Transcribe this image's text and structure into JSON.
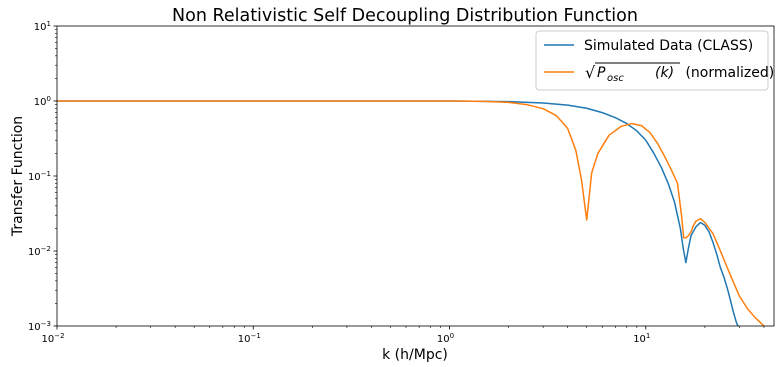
{
  "chart_data": {
    "type": "line",
    "title": "Non Relativistic Self Decoupling Distribution Function",
    "xlabel": "k (h/Mpc)",
    "ylabel": "Transfer Function",
    "xscale": "log",
    "yscale": "log",
    "xlim": [
      0.01,
      45
    ],
    "ylim": [
      0.001,
      10
    ],
    "grid": false,
    "legend_position": "top-right",
    "x_ticks": [
      {
        "value": 0.01,
        "base": "10",
        "exp": "−2"
      },
      {
        "value": 0.1,
        "base": "10",
        "exp": "−1"
      },
      {
        "value": 1,
        "base": "10",
        "exp": "0"
      },
      {
        "value": 10,
        "base": "10",
        "exp": "1"
      }
    ],
    "y_ticks": [
      {
        "value": 0.001,
        "base": "10",
        "exp": "−3"
      },
      {
        "value": 0.01,
        "base": "10",
        "exp": "−2"
      },
      {
        "value": 0.1,
        "base": "10",
        "exp": "−1"
      },
      {
        "value": 1,
        "base": "10",
        "exp": "0"
      },
      {
        "value": 10,
        "base": "10",
        "exp": "1"
      }
    ],
    "series": [
      {
        "name": "Simulated Data (CLASS)",
        "color": "#1f77b4",
        "points": [
          [
            0.01,
            1.0
          ],
          [
            0.1,
            1.0
          ],
          [
            1.0,
            1.0
          ],
          [
            2.0,
            0.98
          ],
          [
            3.0,
            0.94
          ],
          [
            4.0,
            0.88
          ],
          [
            5.0,
            0.8
          ],
          [
            6.0,
            0.7
          ],
          [
            7.0,
            0.6
          ],
          [
            8.0,
            0.5
          ],
          [
            9.0,
            0.4
          ],
          [
            10.0,
            0.3
          ],
          [
            11.0,
            0.2
          ],
          [
            12.0,
            0.13
          ],
          [
            13.0,
            0.08
          ],
          [
            14.0,
            0.045
          ],
          [
            15.0,
            0.02
          ],
          [
            15.5,
            0.011
          ],
          [
            16.0,
            0.007
          ],
          [
            16.5,
            0.011
          ],
          [
            17.0,
            0.016
          ],
          [
            18.0,
            0.021
          ],
          [
            19.0,
            0.024
          ],
          [
            20.0,
            0.022
          ],
          [
            21.0,
            0.018
          ],
          [
            22.0,
            0.013
          ],
          [
            23.0,
            0.009
          ],
          [
            24.0,
            0.006
          ],
          [
            25.0,
            0.0045
          ],
          [
            26.0,
            0.0032
          ],
          [
            27.0,
            0.0022
          ],
          [
            28.0,
            0.0015
          ],
          [
            29.0,
            0.0011
          ],
          [
            29.5,
            0.001
          ]
        ]
      },
      {
        "name_prefix": "√",
        "name_math": "P",
        "name_sub": "osc",
        "name_args": "(k)",
        "name_suffix": " (normalized)",
        "color": "#ff7f0e",
        "points": [
          [
            0.01,
            1.0
          ],
          [
            0.1,
            1.0
          ],
          [
            1.0,
            1.0
          ],
          [
            1.5,
            0.99
          ],
          [
            2.0,
            0.96
          ],
          [
            2.5,
            0.89
          ],
          [
            3.0,
            0.79
          ],
          [
            3.5,
            0.64
          ],
          [
            4.0,
            0.43
          ],
          [
            4.4,
            0.22
          ],
          [
            4.7,
            0.09
          ],
          [
            5.0,
            0.026
          ],
          [
            5.3,
            0.11
          ],
          [
            5.7,
            0.2
          ],
          [
            6.5,
            0.35
          ],
          [
            7.5,
            0.46
          ],
          [
            8.5,
            0.5
          ],
          [
            9.5,
            0.47
          ],
          [
            10.5,
            0.38
          ],
          [
            11.5,
            0.27
          ],
          [
            12.5,
            0.18
          ],
          [
            13.5,
            0.12
          ],
          [
            14.5,
            0.08
          ],
          [
            15.2,
            0.03
          ],
          [
            15.6,
            0.015
          ],
          [
            16.0,
            0.015
          ],
          [
            16.5,
            0.016
          ],
          [
            17.0,
            0.018
          ],
          [
            17.5,
            0.022
          ],
          [
            18.0,
            0.025
          ],
          [
            19.0,
            0.027
          ],
          [
            20.0,
            0.024
          ],
          [
            22.0,
            0.017
          ],
          [
            24.0,
            0.01
          ],
          [
            26.0,
            0.006
          ],
          [
            28.0,
            0.0038
          ],
          [
            30.0,
            0.0025
          ],
          [
            33.0,
            0.0017
          ],
          [
            36.0,
            0.0013
          ],
          [
            40.0,
            0.001
          ]
        ]
      }
    ]
  }
}
